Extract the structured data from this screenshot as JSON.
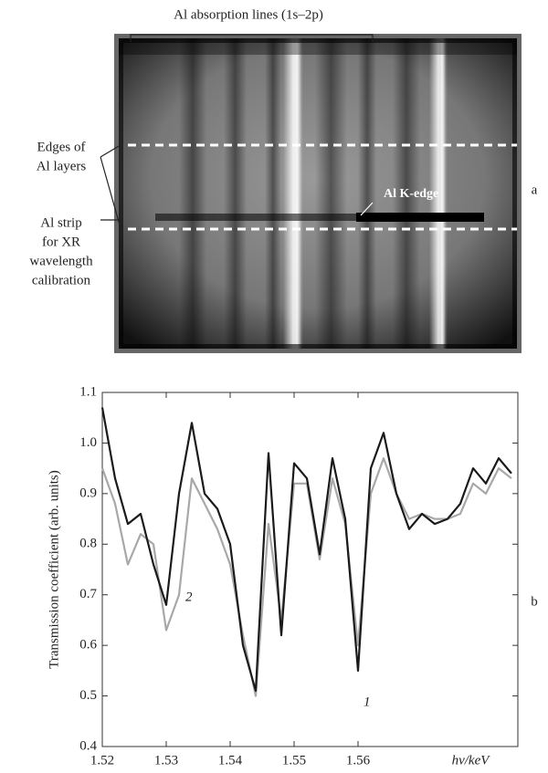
{
  "panel_a": {
    "header": "Al absorption lines (1s–2p)",
    "edges_label": [
      "Edges of",
      "Al layers"
    ],
    "strip_label": [
      "Al strip",
      "for XR",
      "wavelength",
      "calibration"
    ],
    "k_edge": "Al K-edge",
    "panel_label": "a"
  },
  "panel_b_label": "b",
  "chart_data": {
    "type": "line",
    "x_label": "hν/keV",
    "y_label": "Transmission coefficient (arb. units)",
    "x": [
      1.52,
      1.522,
      1.524,
      1.526,
      1.528,
      1.53,
      1.532,
      1.534,
      1.536,
      1.538,
      1.54,
      1.542,
      1.544,
      1.546,
      1.548,
      1.55,
      1.552,
      1.554,
      1.556,
      1.558,
      1.56,
      1.562,
      1.564,
      1.566,
      1.568,
      1.57,
      1.572,
      1.574,
      1.576,
      1.578,
      1.58,
      1.582,
      1.584
    ],
    "series": [
      {
        "name": "1",
        "color": "#1a1a1a",
        "values": [
          1.07,
          0.93,
          0.84,
          0.86,
          0.76,
          0.68,
          0.9,
          1.04,
          0.9,
          0.87,
          0.8,
          0.6,
          0.51,
          0.98,
          0.62,
          0.96,
          0.93,
          0.78,
          0.97,
          0.85,
          0.55,
          0.95,
          1.02,
          0.9,
          0.83,
          0.86,
          0.84,
          0.85,
          0.88,
          0.95,
          0.92,
          0.97,
          0.94
        ]
      },
      {
        "name": "2",
        "color": "#a8a8a8",
        "values": [
          0.95,
          0.88,
          0.76,
          0.82,
          0.8,
          0.63,
          0.7,
          0.93,
          0.88,
          0.83,
          0.76,
          0.62,
          0.5,
          0.84,
          0.65,
          0.92,
          0.92,
          0.77,
          0.93,
          0.84,
          0.6,
          0.9,
          0.97,
          0.9,
          0.85,
          0.86,
          0.85,
          0.85,
          0.86,
          0.92,
          0.9,
          0.95,
          0.93
        ]
      }
    ],
    "xlim": [
      1.52,
      1.585
    ],
    "ylim": [
      0.4,
      1.1
    ],
    "xticks": [
      1.52,
      1.53,
      1.54,
      1.55,
      1.56
    ],
    "yticks": [
      0.4,
      0.5,
      0.6,
      0.7,
      0.8,
      0.9,
      {
        "value": 1,
        "label": "1.0"
      },
      1.1
    ],
    "grid": false
  }
}
